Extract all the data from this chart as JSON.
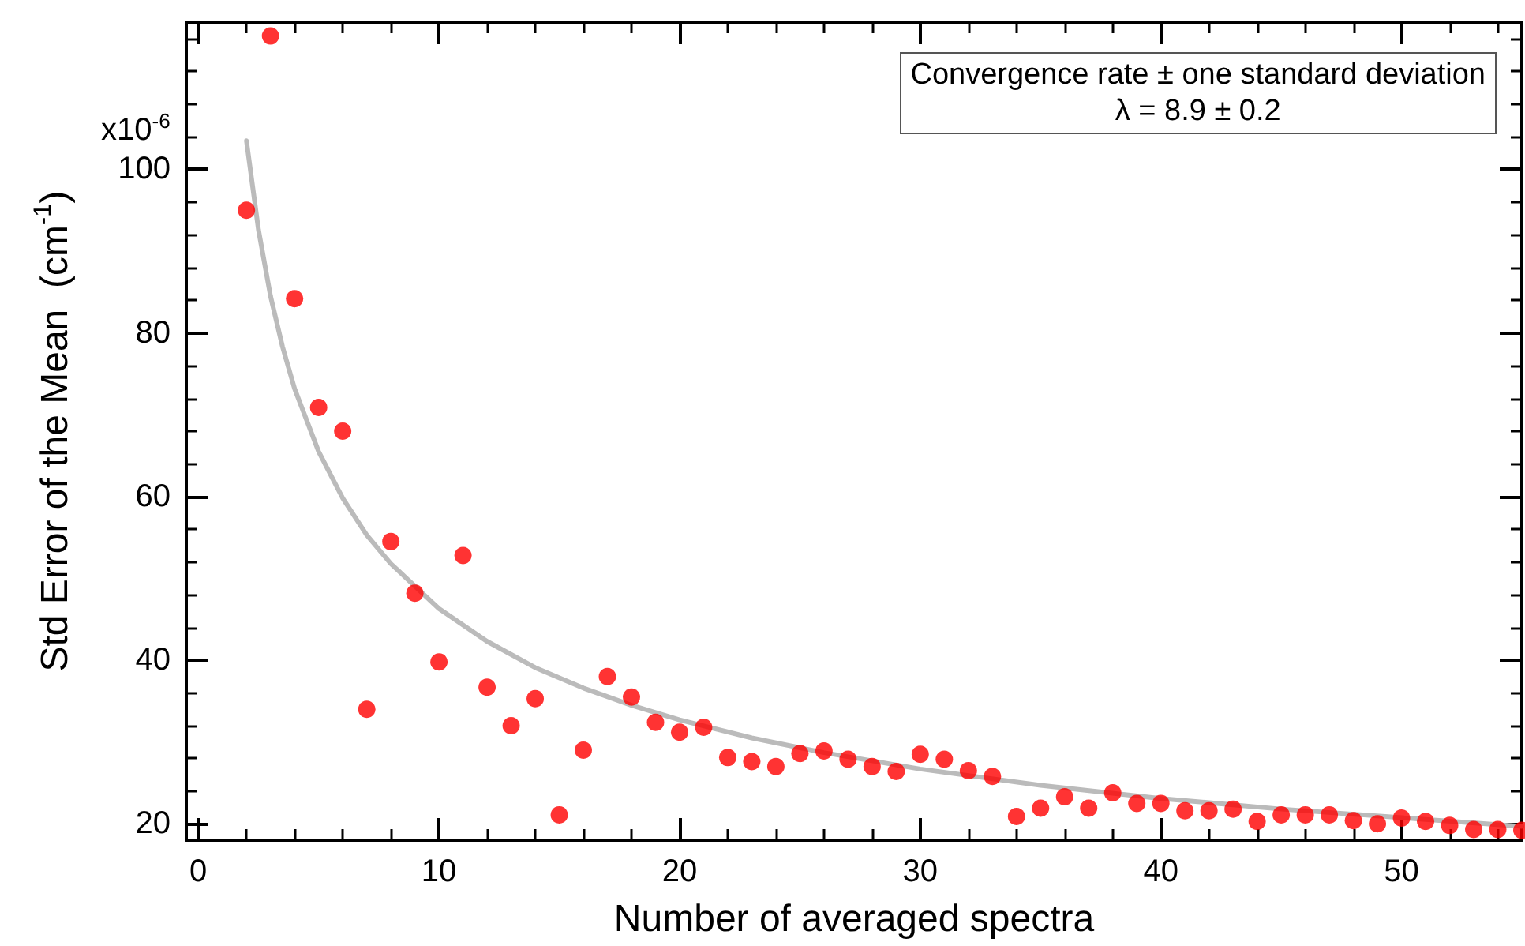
{
  "chart_data": {
    "type": "scatter",
    "xlabel": "Number of averaged spectra",
    "ylabel": "Std Error of the Mean  (cm$^{-1}$)",
    "annotations": [
      "Convergence rate ± one standard deviation",
      "λ = 8.9 ± 0.2",
      "x10$^{-6}$"
    ],
    "xlim": [
      -0.5,
      55
    ],
    "xticks": [
      0,
      10,
      20,
      30,
      40,
      50
    ],
    "ylim": [
      18,
      118
    ],
    "yticks": [
      20,
      40,
      60,
      80,
      100
    ],
    "grid": false,
    "marker": "circle",
    "x": [
      2,
      3,
      4,
      5,
      6,
      7,
      8,
      9,
      10,
      11,
      12,
      13,
      14,
      15,
      16,
      17,
      18,
      19,
      20,
      21,
      22,
      23,
      24,
      25,
      26,
      27,
      28,
      29,
      30,
      31,
      32,
      33,
      34,
      35,
      36,
      37,
      38,
      39,
      40,
      41,
      42,
      43,
      44,
      45,
      46,
      47,
      48,
      49,
      50,
      51,
      52,
      53,
      54,
      55
    ],
    "series": [
      {
        "color": "#ff0000",
        "values": [
          95.0,
          116.3,
          84.2,
          70.9,
          68.0,
          34.0,
          54.5,
          48.2,
          39.8,
          52.8,
          36.7,
          32.0,
          35.3,
          21.1,
          29.0,
          38.0,
          35.5,
          32.4,
          31.2,
          31.8,
          28.1,
          27.6,
          27.0,
          28.6,
          28.9,
          27.9,
          27.0,
          26.4,
          28.5,
          27.9,
          26.5,
          25.8,
          20.9,
          21.9,
          23.3,
          21.9,
          23.8,
          22.5,
          22.5,
          21.6,
          21.6,
          21.8,
          20.3,
          21.1,
          21.1,
          21.1,
          20.4,
          20.0,
          20.7,
          20.3,
          19.8,
          19.3,
          19.3,
          19.2
        ]
      },
      {
        "type": "line",
        "color": "#bbbbbb",
        "line_style": "solid",
        "marker": "none",
        "x": [
          2,
          2.5,
          3,
          3.5,
          4,
          5,
          6,
          7,
          8,
          10,
          12,
          14,
          16,
          18,
          20,
          23,
          26,
          30,
          35,
          40,
          45,
          55
        ],
        "values": [
          103.5,
          92.6,
          84.5,
          78.3,
          73.2,
          65.5,
          59.8,
          55.3,
          51.8,
          46.3,
          42.3,
          39.1,
          36.6,
          34.5,
          32.7,
          30.5,
          28.7,
          26.7,
          24.7,
          23.1,
          21.8,
          19.7
        ]
      }
    ]
  }
}
